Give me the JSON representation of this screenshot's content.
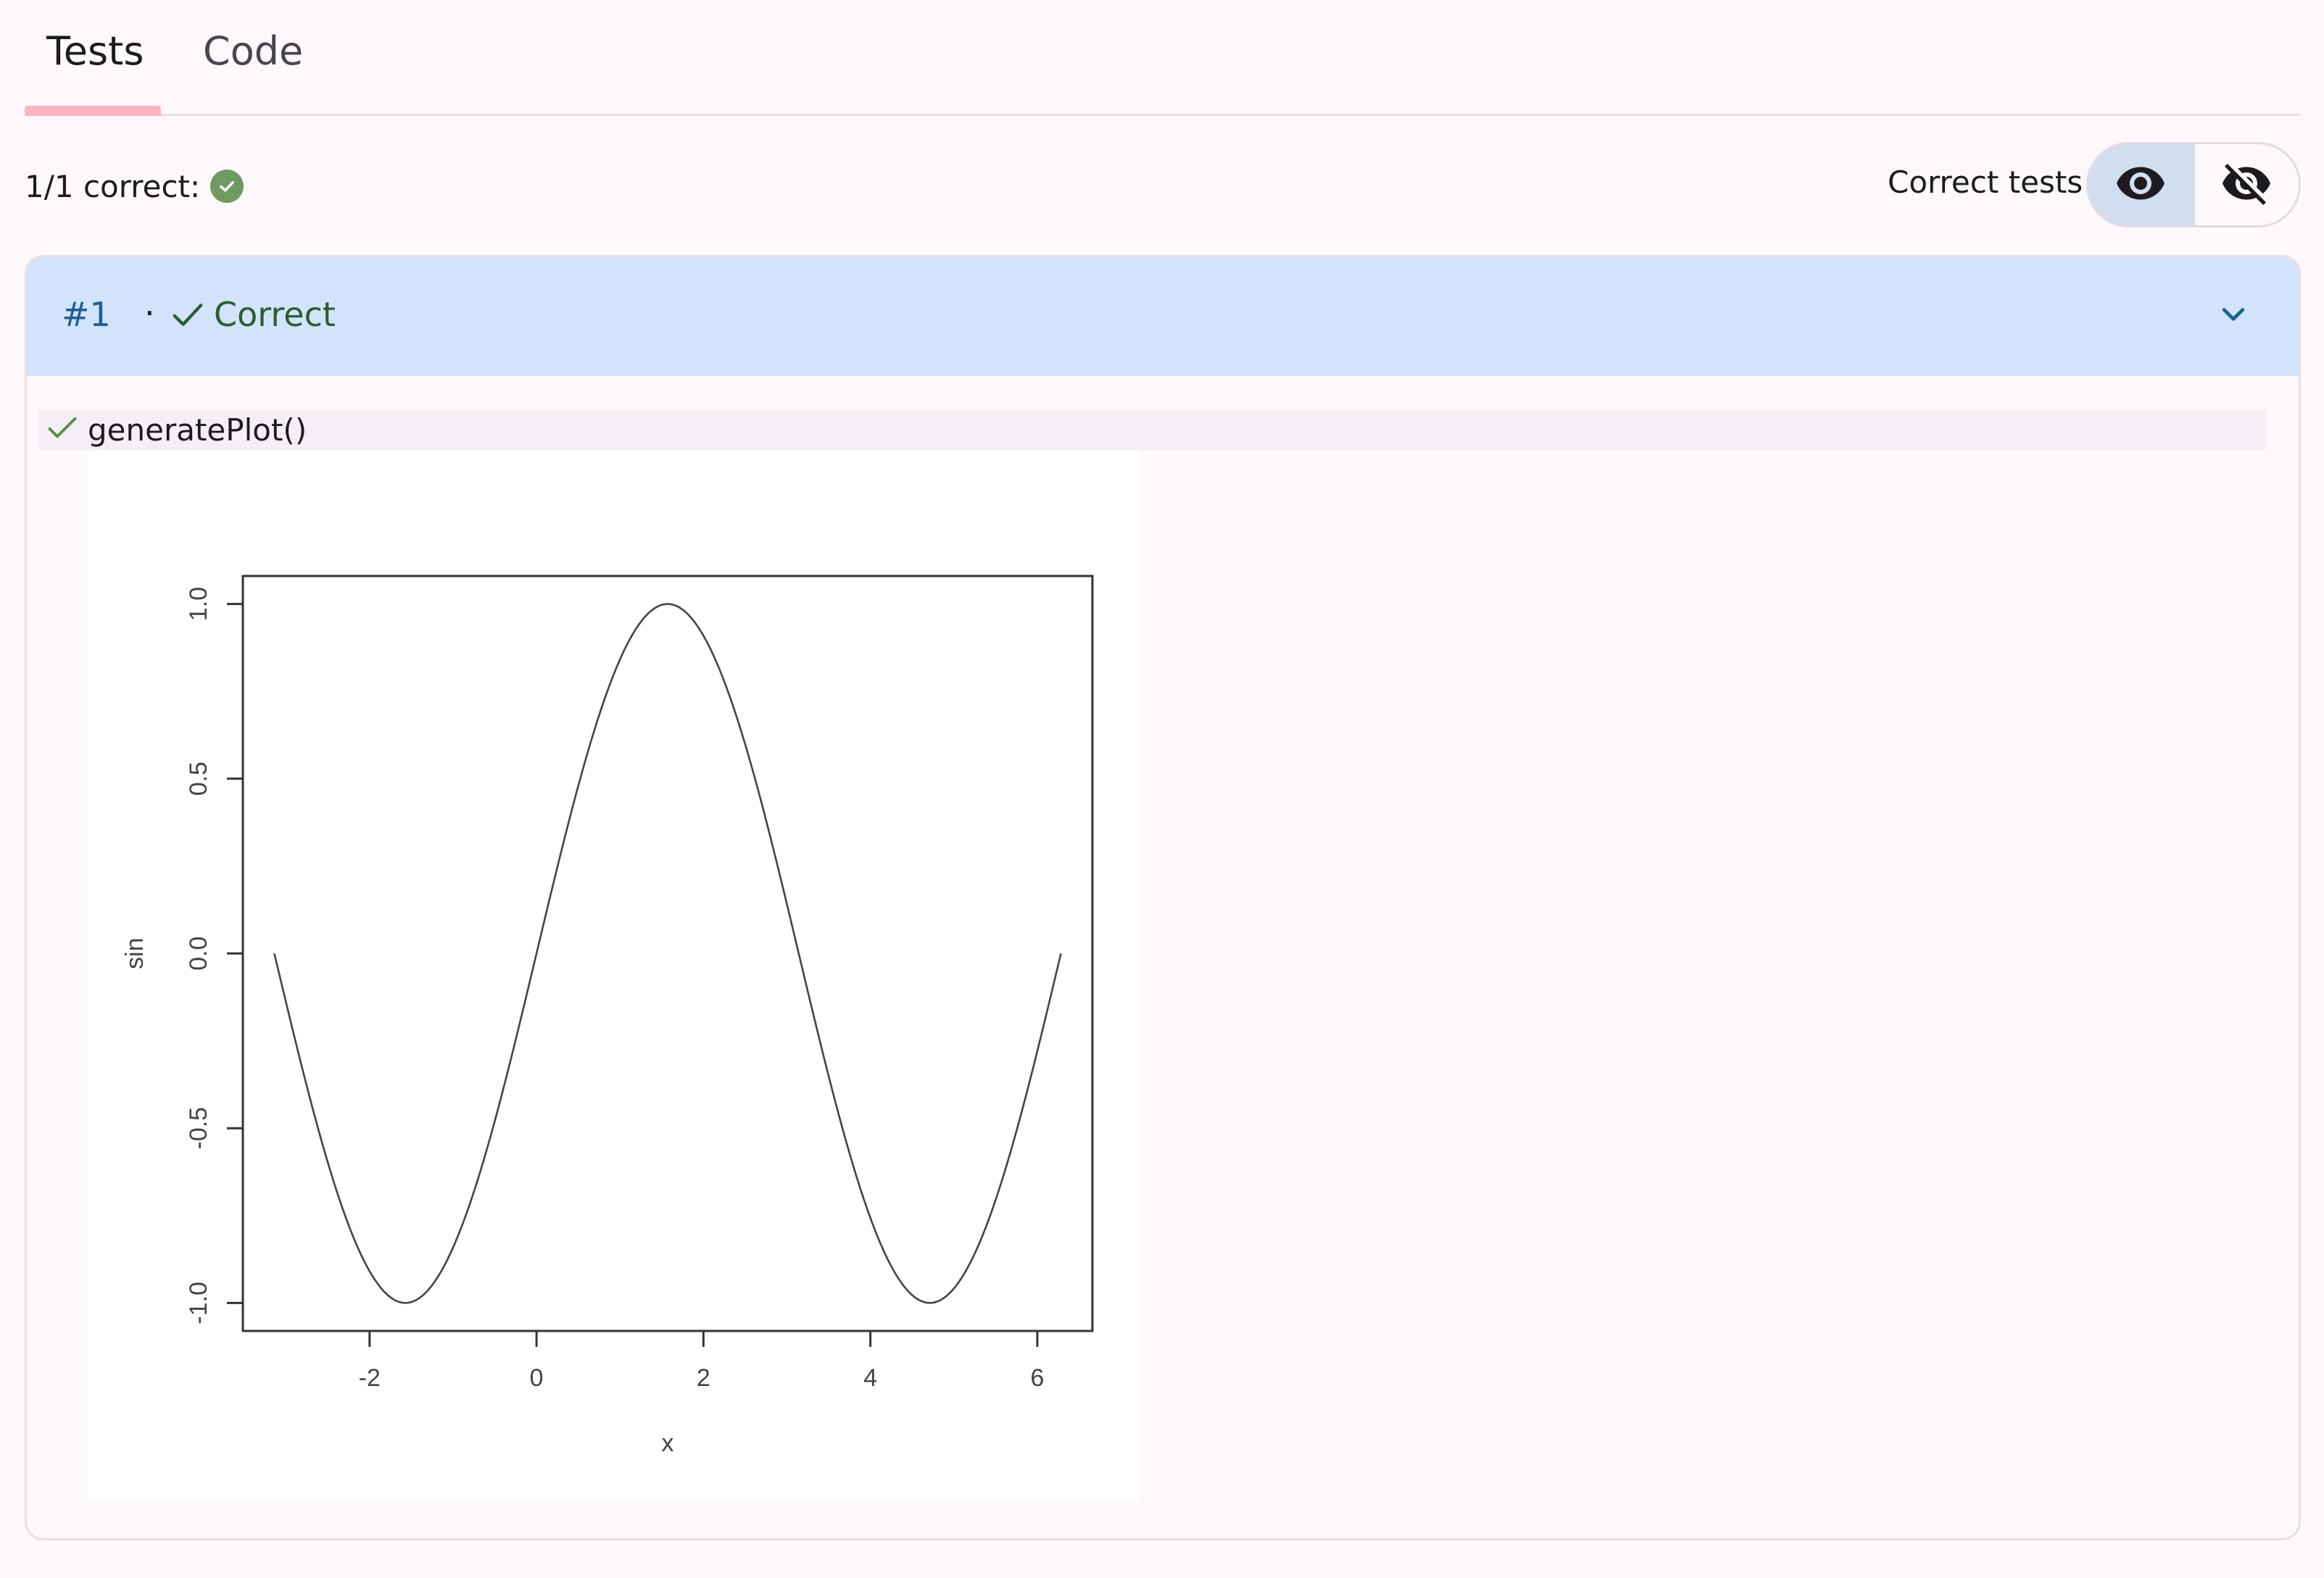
{
  "tabs": [
    {
      "label": "Tests",
      "active": true
    },
    {
      "label": "Code",
      "active": false
    }
  ],
  "summary": {
    "text": "1/1 correct:",
    "badge_icon": "check-circle-icon",
    "badge_color": "#6f9a61"
  },
  "filter": {
    "label": "Correct tests",
    "show_icon": "eye-icon",
    "hide_icon": "eye-off-icon",
    "selected": "show"
  },
  "test": {
    "number": "#1",
    "separator": "·",
    "status": "Correct",
    "status_color": "#2f5d2e",
    "header_color": "#d2e4fb",
    "function_call": "generatePlot()"
  },
  "chart_data": {
    "type": "line",
    "title": "",
    "xlabel": "x",
    "ylabel": "sin",
    "xlim": [
      -3.14159,
      6.28319
    ],
    "ylim": [
      -1.0,
      1.0
    ],
    "xticks": [
      -2,
      0,
      2,
      4,
      6
    ],
    "yticks": [
      -1.0,
      -0.5,
      0.0,
      0.5,
      1.0
    ],
    "xtick_labels": [
      "-2",
      "0",
      "2",
      "4",
      "6"
    ],
    "ytick_labels": [
      "-1.0",
      "-0.5",
      "0.0",
      "0.5",
      "1.0"
    ],
    "series": [
      {
        "function": "sin",
        "x_range": [
          -3.14159,
          6.28319
        ],
        "points": 200
      }
    ]
  }
}
